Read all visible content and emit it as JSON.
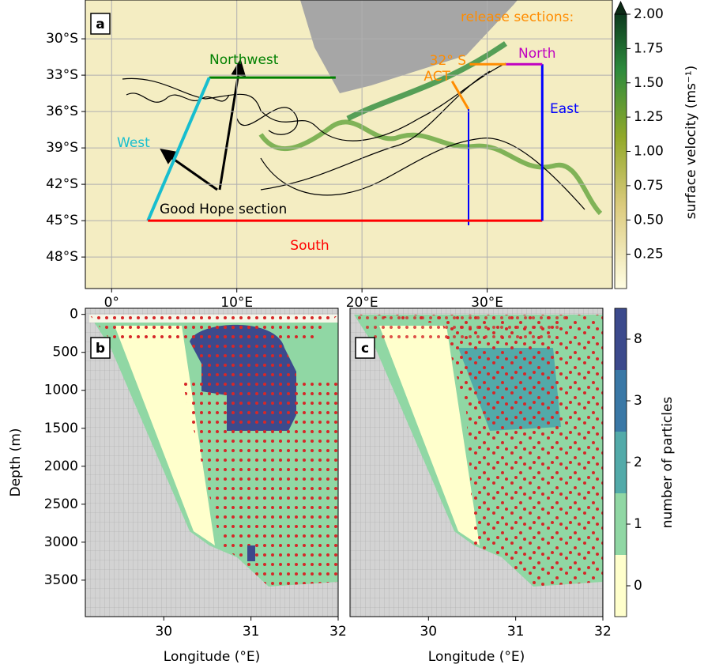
{
  "chart_data": [
    {
      "type": "map",
      "panel_label": "a",
      "xlim": [
        -2.1,
        40
      ],
      "ylim": [
        -50.6,
        -26.8
      ],
      "xticks": [
        {
          "value": 0,
          "label": "0°"
        },
        {
          "value": 10,
          "label": "10°E"
        },
        {
          "value": 20,
          "label": "20°E"
        },
        {
          "value": 30,
          "label": "30°E"
        }
      ],
      "yticks": [
        {
          "value": -30,
          "label": "30°S"
        },
        {
          "value": -33,
          "label": "33°S"
        },
        {
          "value": -36,
          "label": "36°S"
        },
        {
          "value": -39,
          "label": "39°S"
        },
        {
          "value": -42,
          "label": "42°S"
        },
        {
          "value": -45,
          "label": "45°S"
        },
        {
          "value": -48,
          "label": "48°S"
        }
      ],
      "grid": true,
      "sections": [
        {
          "name": "Northwest",
          "color": "#008000",
          "lon": [
            7.8,
            17.9
          ],
          "lat": [
            -33.2,
            -33.2
          ]
        },
        {
          "name": "West",
          "color": "#17becf",
          "lon": [
            2.9,
            7.8
          ],
          "lat": [
            -45,
            -33.2
          ]
        },
        {
          "name": "South",
          "color": "#ff0000",
          "lon": [
            2.9,
            34.4
          ],
          "lat": [
            -45,
            -45
          ]
        },
        {
          "name": "East",
          "color": "#0000ff",
          "lon": [
            34.4,
            34.4
          ],
          "lat": [
            -45,
            -32.1
          ]
        },
        {
          "name": "North",
          "color": "#c000c0",
          "lon": [
            31.5,
            34.4
          ],
          "lat": [
            -32.1,
            -32.1
          ]
        },
        {
          "name": "32° S",
          "color": "#ff8c00",
          "lon": [
            28.6,
            31.5
          ],
          "lat": [
            -32.1,
            -32.1
          ]
        },
        {
          "name": "ACT",
          "color": "#ff8c00",
          "lon": [
            27.2,
            28.5
          ],
          "lat": [
            -33.5,
            -35.8
          ]
        }
      ],
      "annotations": [
        "release sections:",
        "Good Hope section"
      ],
      "colorbar": {
        "label": "surface velocity (ms⁻¹)",
        "lim": [
          0,
          2
        ],
        "ticks": [
          0.25,
          {
            "value": 0.5,
            "label": "0.50"
          },
          0.75,
          {
            "value": 1,
            "label": "1.00"
          },
          1.25,
          {
            "value": 1.5,
            "label": "1.50"
          },
          1.75,
          {
            "value": 2,
            "label": "2.00"
          }
        ]
      }
    },
    {
      "type": "section",
      "panel_label": "b",
      "xlabel": "Longitude (°E)",
      "ylabel": "Depth (m)",
      "xlim": [
        29.1,
        32.0
      ],
      "ylim": [
        3980,
        -80
      ],
      "xticks": [
        30,
        31,
        32
      ],
      "yticks": [
        0,
        500,
        1000,
        1500,
        2000,
        2500,
        3000,
        3500
      ]
    },
    {
      "type": "section",
      "panel_label": "c",
      "xlabel": "Longitude (°E)",
      "xlim": [
        29.1,
        32.0
      ],
      "ylim": [
        3980,
        -80
      ],
      "xticks": [
        30,
        31,
        32
      ],
      "colorbar": {
        "label": "number of particles",
        "categories": [
          "0",
          "1",
          "2",
          "3",
          "8"
        ],
        "colors": [
          "#ffffcc",
          "#90d7a4",
          "#52aaa9",
          "#3a78a6",
          "#3c4a8c"
        ]
      }
    }
  ]
}
